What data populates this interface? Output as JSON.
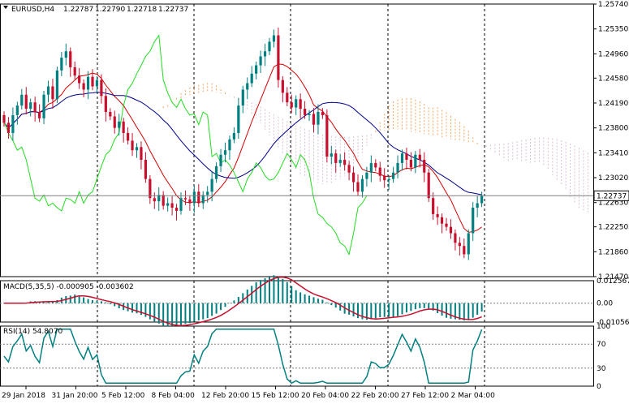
{
  "chart_data": {
    "type": "candlestick",
    "symbol": "EURUSD,H4",
    "ohlc_header": [
      "1.22787",
      "1.22790",
      "1.22718",
      "1.22737"
    ],
    "price_axis": {
      "ticks": [
        "1.25740",
        "1.25350",
        "1.24960",
        "1.24580",
        "1.24190",
        "1.23800",
        "1.23410",
        "1.23020",
        "1.22630",
        "1.22250",
        "1.21860",
        "1.21470"
      ],
      "ylim": [
        1.2147,
        1.2574
      ]
    },
    "current_price": "1.22737",
    "time_axis": [
      "29 Jan 2018",
      "31 Jan 20:00",
      "5 Feb 12:00",
      "8 Feb 04:00",
      "12 Feb 20:00",
      "15 Feb 12:00",
      "20 Feb 04:00",
      "22 Feb 20:00",
      "27 Feb 12:00",
      "2 Mar 04:00"
    ],
    "candles_close": [
      1.2388,
      1.2372,
      1.24,
      1.2415,
      1.2432,
      1.241,
      1.242,
      1.2405,
      1.2395,
      1.2432,
      1.2445,
      1.2425,
      1.247,
      1.249,
      1.25,
      1.2475,
      1.2462,
      1.245,
      1.244,
      1.246,
      1.2445,
      1.2455,
      1.243,
      1.2405,
      1.2398,
      1.238,
      1.239,
      1.2372,
      1.236,
      1.2345,
      1.235,
      1.233,
      1.23,
      1.227,
      1.2265,
      1.2275,
      1.2258,
      1.2262,
      1.2255,
      1.225,
      1.227,
      1.2268,
      1.2262,
      1.228,
      1.2262,
      1.2275,
      1.228,
      1.23,
      1.232,
      1.2338,
      1.2345,
      1.2362,
      1.2372,
      1.2415,
      1.244,
      1.245,
      1.2465,
      1.2478,
      1.2492,
      1.25,
      1.2515,
      1.2525,
      1.2455,
      1.2435,
      1.242,
      1.2412,
      1.2425,
      1.241,
      1.24,
      1.2402,
      1.2385,
      1.2405,
      1.24,
      1.2335,
      1.234,
      1.2325,
      1.233,
      1.2322,
      1.231,
      1.2295,
      1.228,
      1.23,
      1.231,
      1.2325,
      1.2318,
      1.2305,
      1.2298,
      1.23,
      1.231,
      1.2325,
      1.234,
      1.233,
      1.2318,
      1.2338,
      1.233,
      1.231,
      1.227,
      1.2245,
      1.224,
      1.223,
      1.2225,
      1.2215,
      1.22,
      1.2195,
      1.2182,
      1.2215,
      1.2255,
      1.2262,
      1.2274
    ],
    "rsi": {
      "label": "RSI(14) 54.8070",
      "ticks": [
        "100",
        "70",
        "30",
        "0"
      ],
      "ylim": [
        0,
        100
      ]
    },
    "macd": {
      "label": "MACD(5,35,5) -0.000905 -0.003602",
      "ticks": [
        "0.012567",
        "0.00",
        "-0.010565"
      ],
      "ylim": [
        -0.010565,
        0.012567
      ]
    }
  }
}
